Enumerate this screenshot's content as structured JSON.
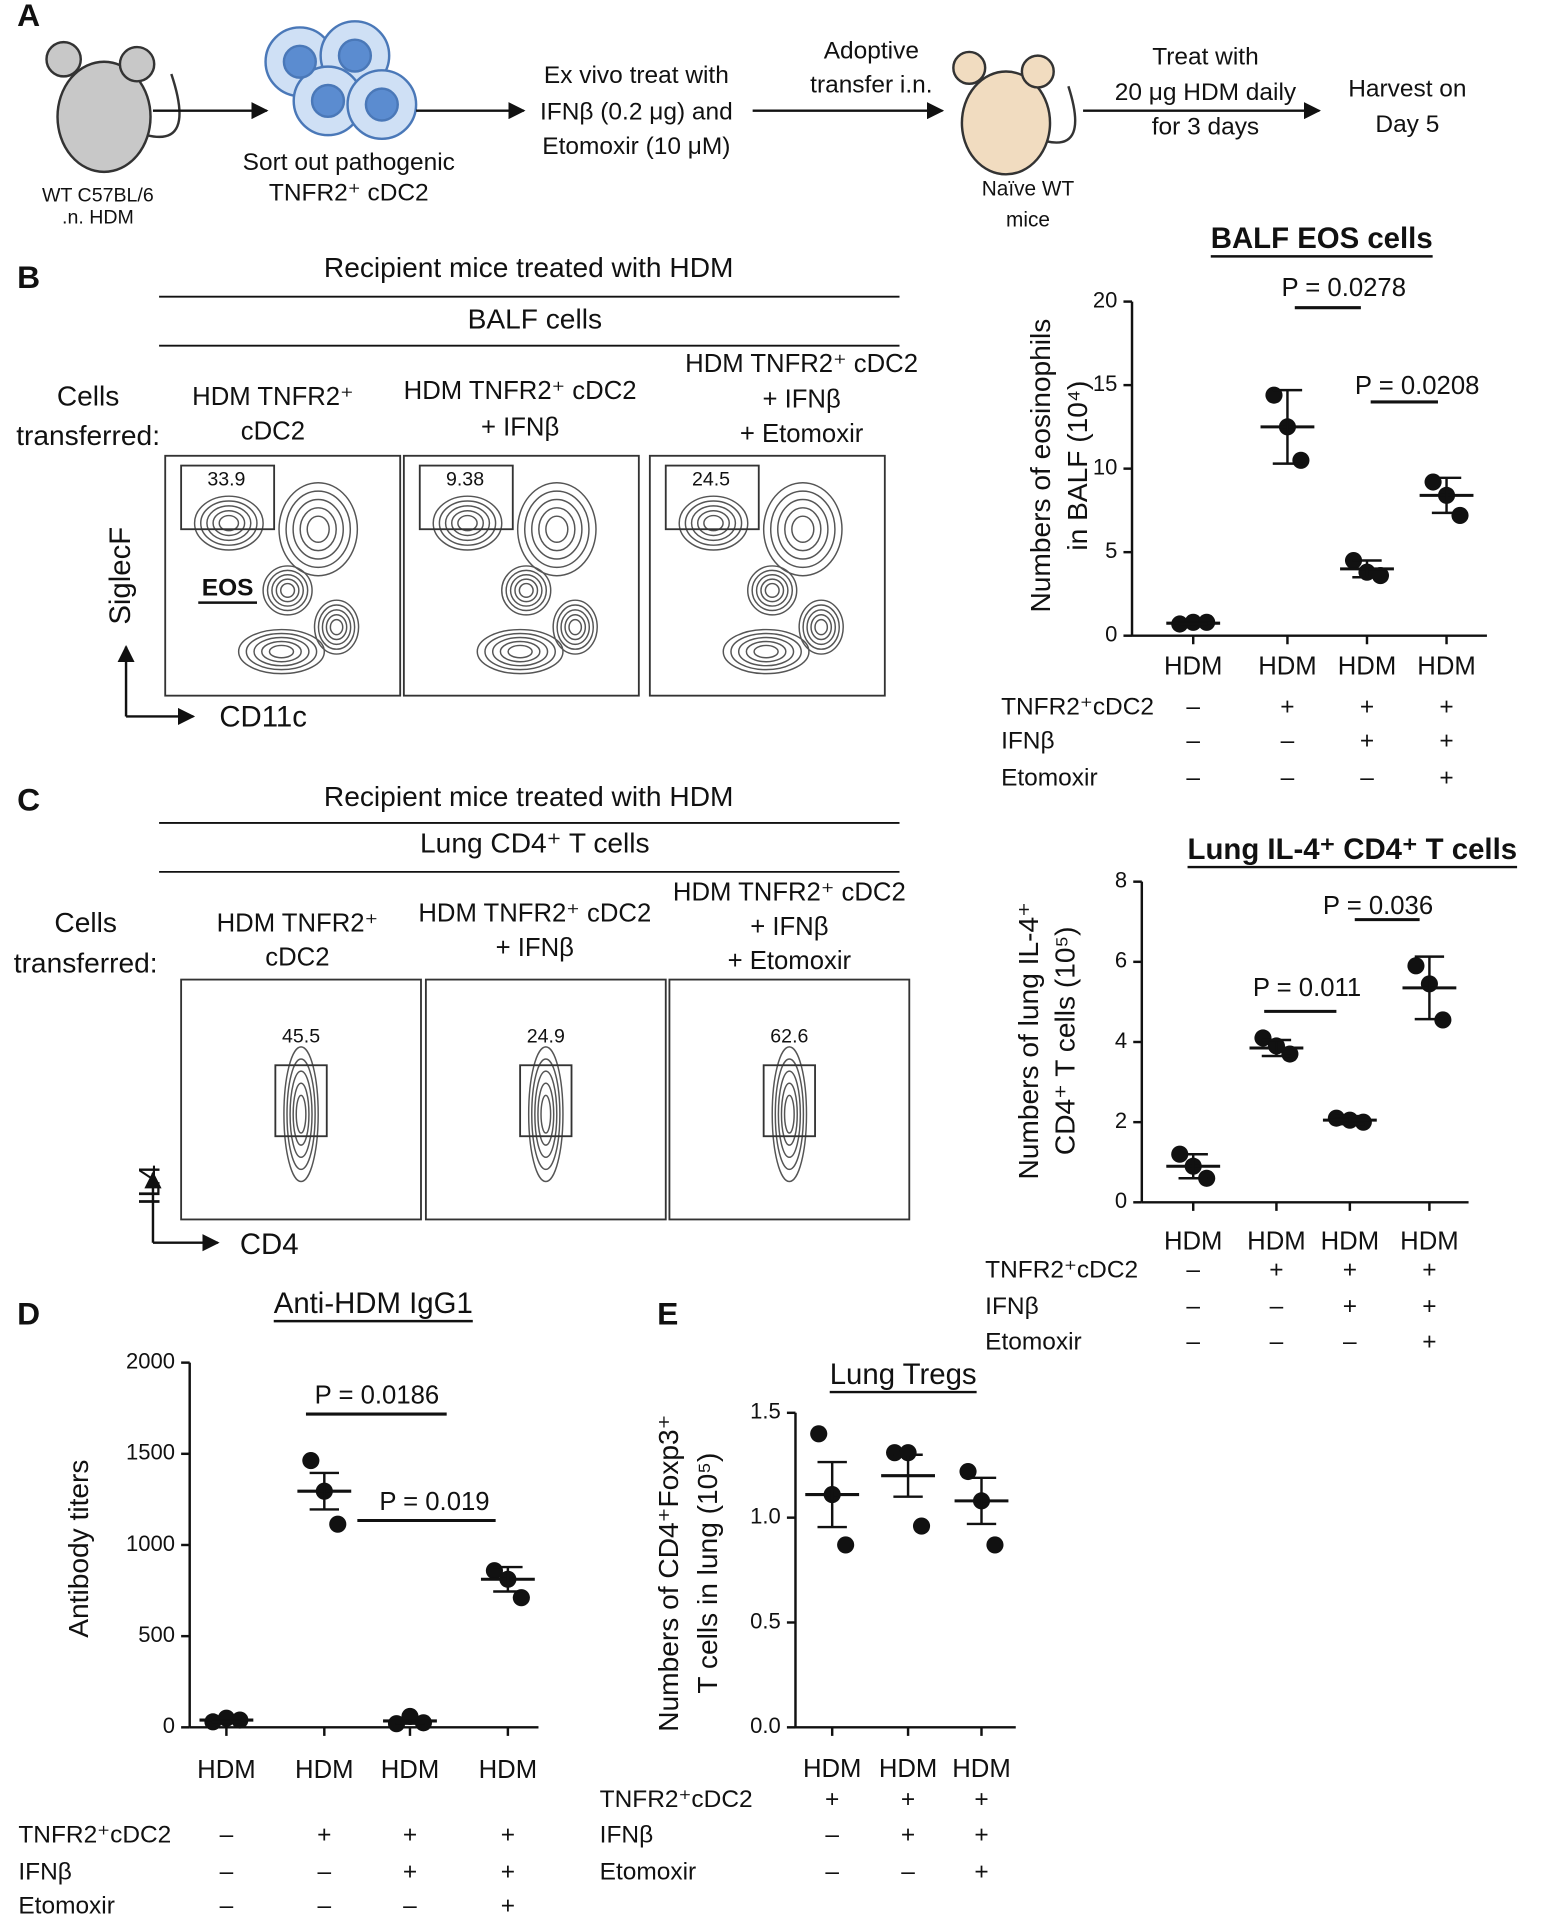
{
  "panel_labels": [
    "A",
    "B",
    "C",
    "D",
    "E"
  ],
  "schematic": {
    "steps": [
      {
        "lines": [
          "WT C57BL/6",
          ".n. HDM"
        ]
      },
      {
        "lines": [
          "Sort out pathogenic",
          "TNFR2⁺ cDC2"
        ]
      },
      {
        "lines": [
          "Ex vivo treat with",
          "IFNβ (0.2 μg) and",
          "Etomoxir (10 μM)"
        ]
      },
      {
        "lines": [
          "Adoptive",
          "transfer i.n."
        ]
      },
      {
        "lines": [
          "Naïve WT",
          "mice"
        ]
      },
      {
        "lines": [
          "Treat with",
          "20 μg HDM daily",
          "for 3 days"
        ]
      },
      {
        "lines": [
          "Harvest on",
          "Day 5"
        ]
      }
    ]
  },
  "flow_panels": [
    {
      "header": "Recipient mice treated with HDM",
      "subheader": "BALF cells",
      "row_label": [
        "Cells",
        "transferred:"
      ],
      "conditions": [
        [
          "HDM TNFR2⁺",
          "cDC2"
        ],
        [
          "HDM TNFR2⁺ cDC2",
          "+ IFNβ"
        ],
        [
          "HDM TNFR2⁺ cDC2",
          "+ IFNβ",
          "+ Etomoxir"
        ]
      ],
      "gates": [
        33.9,
        9.38,
        24.5
      ],
      "gate_label": "EOS",
      "y_axis": "SiglecF",
      "x_axis": "CD11c"
    },
    {
      "header": "Recipient mice treated with HDM",
      "subheader": "Lung CD4⁺ T cells",
      "row_label": [
        "Cells",
        "transferred:"
      ],
      "conditions": [
        [
          "HDM TNFR2⁺",
          "cDC2"
        ],
        [
          "HDM TNFR2⁺ cDC2",
          "+ IFNβ"
        ],
        [
          "HDM TNFR2⁺ cDC2",
          "+ IFNβ",
          "+ Etomoxir"
        ]
      ],
      "gates": [
        45.5,
        24.9,
        62.6
      ],
      "y_axis": "IL4",
      "x_axis": "CD4"
    }
  ],
  "chart_data": [
    {
      "type": "dotplot",
      "title": "BALF EOS cells",
      "y_label": [
        "Numbers of eosinophils",
        "in BALF (10⁴)"
      ],
      "categories": [
        "HDM",
        "HDM",
        "HDM",
        "HDM"
      ],
      "points": [
        [
          0.7,
          0.8,
          0.8
        ],
        [
          14.4,
          12.5,
          10.5
        ],
        [
          4.5,
          3.8,
          3.6
        ],
        [
          9.2,
          8.4,
          7.2
        ]
      ],
      "means": [
        0.75,
        12.5,
        4.0,
        8.4
      ],
      "errors": [
        0.05,
        2.2,
        0.5,
        1.05
      ],
      "ylim": [
        0,
        20
      ],
      "yticks": [
        0,
        5,
        10,
        15,
        20
      ],
      "comparisons": [
        "P = 0.0278",
        "P = 0.0208"
      ],
      "treatments": [
        {
          "name": "TNFR2⁺cDC2",
          "marks": [
            "–",
            "+",
            "+",
            "+"
          ]
        },
        {
          "name": "IFNβ",
          "marks": [
            "–",
            "–",
            "+",
            "+"
          ]
        },
        {
          "name": "Etomoxir",
          "marks": [
            "–",
            "–",
            "–",
            "+"
          ]
        }
      ]
    },
    {
      "type": "dotplot",
      "title": "Lung IL-4⁺ CD4⁺ T cells",
      "y_label": [
        "Numbers of  lung IL-4⁺",
        "CD4⁺ T cells (10⁵)"
      ],
      "categories": [
        "HDM",
        "HDM",
        "HDM",
        "HDM"
      ],
      "points": [
        [
          1.2,
          0.9,
          0.6
        ],
        [
          4.1,
          3.9,
          3.7
        ],
        [
          2.1,
          2.05,
          2.0
        ],
        [
          5.9,
          5.45,
          4.55
        ]
      ],
      "means": [
        0.9,
        3.85,
        2.05,
        5.35
      ],
      "errors": [
        0.3,
        0.2,
        0.1,
        0.78
      ],
      "ylim": [
        0,
        8
      ],
      "yticks": [
        0,
        2,
        4,
        6,
        8
      ],
      "comparisons": [
        "P = 0.011",
        "P = 0.036"
      ],
      "treatments": [
        {
          "name": "TNFR2⁺cDC2",
          "marks": [
            "–",
            "+",
            "+",
            "+"
          ]
        },
        {
          "name": "IFNβ",
          "marks": [
            "–",
            "–",
            "+",
            "+"
          ]
        },
        {
          "name": "Etomoxir",
          "marks": [
            "–",
            "–",
            "–",
            "+"
          ]
        }
      ]
    },
    {
      "type": "dotplot",
      "title": "Anti-HDM IgG1",
      "y_label": [
        "Antibody titers"
      ],
      "categories": [
        "HDM",
        "HDM",
        "HDM",
        "HDM"
      ],
      "points": [
        [
          30,
          50,
          40
        ],
        [
          1463,
          1295,
          1114
        ],
        [
          20,
          60,
          25
        ],
        [
          859,
          812,
          711
        ]
      ],
      "means": [
        40,
        1295,
        35,
        812
      ],
      "errors": [
        10,
        100,
        15,
        67
      ],
      "ylim": [
        0,
        2000
      ],
      "yticks": [
        0,
        500,
        1000,
        1500,
        2000
      ],
      "comparisons": [
        "P = 0.0186",
        "P = 0.019"
      ],
      "treatments": [
        {
          "name": "TNFR2⁺cDC2",
          "marks": [
            "–",
            "+",
            "+",
            "+"
          ]
        },
        {
          "name": "IFNβ",
          "marks": [
            "–",
            "–",
            "+",
            "+"
          ]
        },
        {
          "name": "Etomoxir",
          "marks": [
            "–",
            "–",
            "–",
            "+"
          ]
        }
      ]
    },
    {
      "type": "dotplot",
      "title": "Lung Tregs",
      "y_label": [
        "Numbers of CD4⁺Foxp3⁺",
        "T cells in lung (10⁵)"
      ],
      "categories": [
        "HDM",
        "HDM",
        "HDM"
      ],
      "points": [
        [
          1.4,
          1.11,
          0.87
        ],
        [
          1.31,
          1.31,
          0.96
        ],
        [
          1.22,
          1.08,
          0.87
        ]
      ],
      "means": [
        1.11,
        1.2,
        1.08
      ],
      "errors": [
        0.155,
        0.1,
        0.11
      ],
      "ylim": [
        0,
        1.5
      ],
      "yticks": [
        {
          "value": 0,
          "label": "0.0"
        },
        0.5,
        {
          "value": 1,
          "label": "1.0"
        },
        1.5
      ],
      "comparisons": [],
      "treatments": [
        {
          "name": "TNFR2⁺cDC2",
          "marks": [
            "+",
            "+",
            "+"
          ]
        },
        {
          "name": "IFNβ",
          "marks": [
            "–",
            "+",
            "+"
          ]
        },
        {
          "name": "Etomoxir",
          "marks": [
            "–",
            "–",
            "+"
          ]
        }
      ]
    }
  ]
}
